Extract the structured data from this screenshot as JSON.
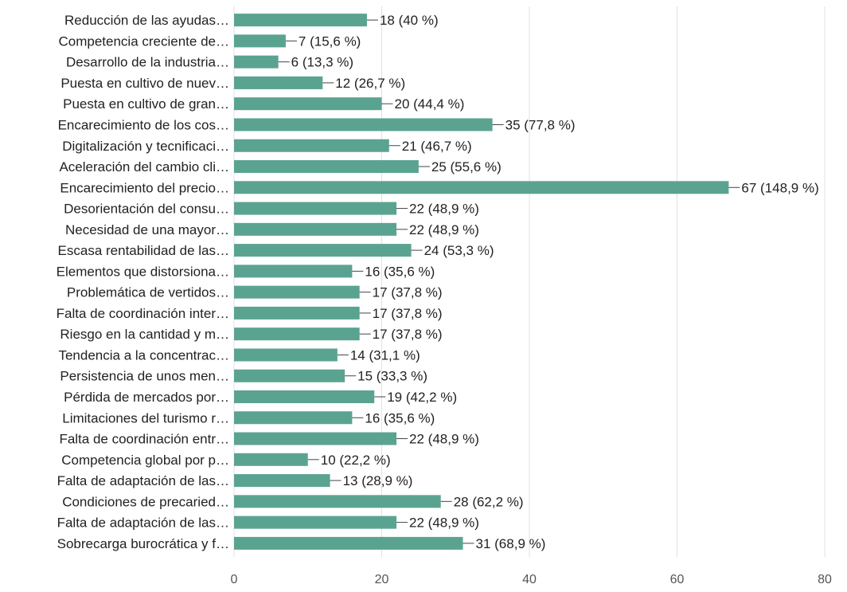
{
  "chart_data": {
    "type": "bar",
    "orientation": "horizontal",
    "categories": [
      "Reducción de las ayudas…",
      "Competencia creciente de…",
      "Desarrollo de la industria…",
      "Puesta en cultivo de nuev…",
      "Puesta en cultivo de gran…",
      "Encarecimiento de los cos…",
      "Digitalización y tecnificaci…",
      "Aceleración del cambio cli…",
      "Encarecimiento del precio…",
      "Desorientación del consu…",
      "Necesidad de una mayor…",
      "Escasa rentabilidad de las…",
      "Elementos que distorsiona…",
      "Problemática de vertidos…",
      "Falta de coordinación inter…",
      "Riesgo en la cantidad y m…",
      "Tendencia a la concentrac…",
      "Persistencia de unos men…",
      "Pérdida de mercados por…",
      "Limitaciones del turismo r…",
      "Falta de coordinación entr…",
      "Competencia global por p…",
      "Falta de adaptación de las…",
      "Condiciones de precaried…",
      "Falta de adaptación de las…",
      "Sobrecarga burocrática y f…"
    ],
    "values": [
      18,
      7,
      6,
      12,
      20,
      35,
      21,
      25,
      67,
      22,
      22,
      24,
      16,
      17,
      17,
      17,
      14,
      15,
      19,
      16,
      22,
      10,
      13,
      28,
      22,
      31
    ],
    "data_labels": [
      "18 (40 %)",
      "7 (15,6 %)",
      "6 (13,3 %)",
      "12 (26,7 %)",
      "20 (44,4 %)",
      "35 (77,8 %)",
      "21 (46,7 %)",
      "25 (55,6 %)",
      "67 (148,9 %)",
      "22 (48,9 %)",
      "22 (48,9 %)",
      "24 (53,3 %)",
      "16 (35,6 %)",
      "17 (37,8 %)",
      "17 (37,8 %)",
      "17 (37,8 %)",
      "14 (31,1 %)",
      "15 (33,3 %)",
      "19 (42,2 %)",
      "16 (35,6 %)",
      "22 (48,9 %)",
      "10 (22,2 %)",
      "13 (28,9 %)",
      "28 (62,2 %)",
      "22 (48,9 %)",
      "31 (68,9 %)"
    ],
    "title": "",
    "xlabel": "",
    "ylabel": "",
    "xlim": [
      0,
      80
    ],
    "xticks": [
      0,
      20,
      40,
      60,
      80
    ],
    "xtick_labels": [
      "0",
      "20",
      "40",
      "60",
      "80"
    ],
    "grid": true,
    "legend": "none",
    "bar_color": "#5ba391",
    "grid_color": "#e0e0e0",
    "text_color": "#222222",
    "tick_label_color": "#555555"
  }
}
